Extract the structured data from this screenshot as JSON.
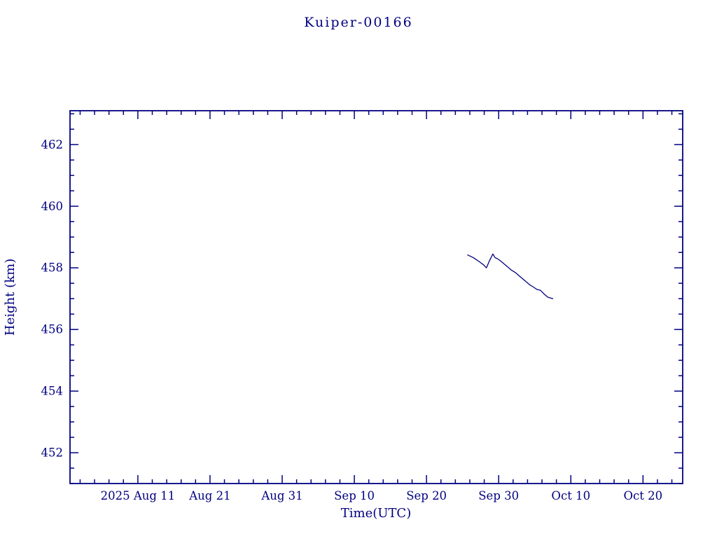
{
  "title": "Kuiper-00166",
  "colors": {
    "axis": "#000080",
    "text": "#000080",
    "line": "#000080",
    "background": "#ffffff"
  },
  "chart_data": {
    "type": "line",
    "title": "Kuiper-00166",
    "xlabel": "Time(UTC)",
    "ylabel": "Height (km)",
    "x_unit": "days since 2025-08-01 UTC",
    "xlim": [
      0.6,
      85.5
    ],
    "ylim": [
      451.0,
      463.1
    ],
    "grid": false,
    "legend": "none",
    "x_major_ticks": [
      {
        "day": 10,
        "label": "2025 Aug 11"
      },
      {
        "day": 20,
        "label": "Aug 21"
      },
      {
        "day": 30,
        "label": "Aug 31"
      },
      {
        "day": 40,
        "label": "Sep 10"
      },
      {
        "day": 50,
        "label": "Sep 20"
      },
      {
        "day": 60,
        "label": "Sep 30"
      },
      {
        "day": 70,
        "label": "Oct 10"
      },
      {
        "day": 80,
        "label": "Oct 20"
      }
    ],
    "x_minor_step": 2,
    "y_major_ticks": [
      452,
      454,
      456,
      458,
      460,
      462
    ],
    "y_minor_step": 0.5,
    "series": [
      {
        "name": "Kuiper-00166 height",
        "color": "#000080",
        "points": [
          [
            55.7,
            458.42
          ],
          [
            56.5,
            458.33
          ],
          [
            57.3,
            458.2
          ],
          [
            57.9,
            458.1
          ],
          [
            58.3,
            458.0
          ],
          [
            58.7,
            458.22
          ],
          [
            59.2,
            458.45
          ],
          [
            59.5,
            458.33
          ],
          [
            59.8,
            458.3
          ],
          [
            60.3,
            458.22
          ],
          [
            60.8,
            458.12
          ],
          [
            61.3,
            458.02
          ],
          [
            61.8,
            457.92
          ],
          [
            62.3,
            457.85
          ],
          [
            62.8,
            457.75
          ],
          [
            63.3,
            457.65
          ],
          [
            63.8,
            457.55
          ],
          [
            64.3,
            457.45
          ],
          [
            64.8,
            457.38
          ],
          [
            65.3,
            457.3
          ],
          [
            65.8,
            457.27
          ],
          [
            66.3,
            457.15
          ],
          [
            66.8,
            457.05
          ],
          [
            67.5,
            457.0
          ]
        ]
      }
    ]
  }
}
